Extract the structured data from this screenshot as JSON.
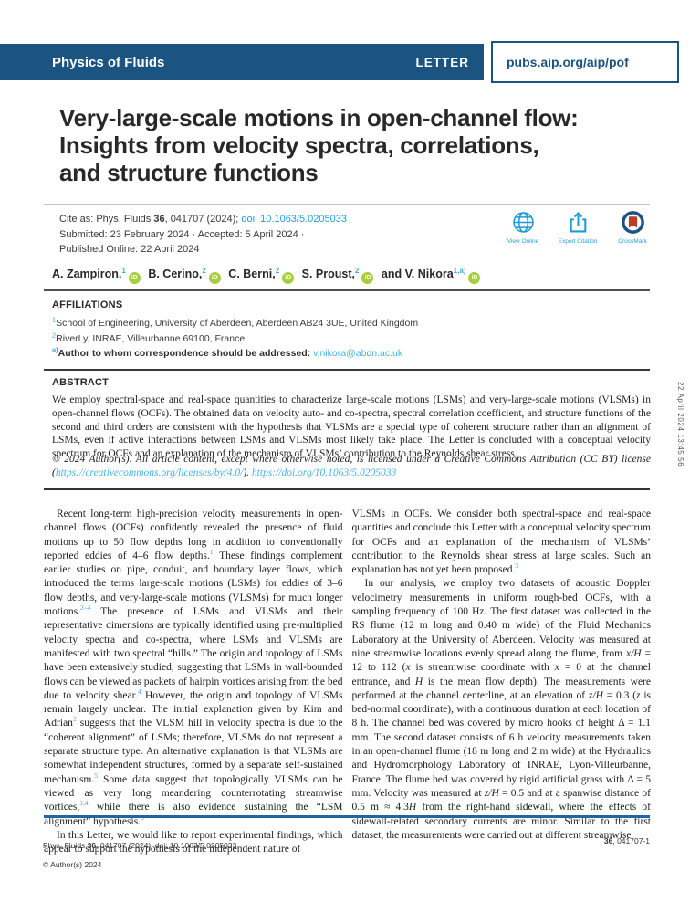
{
  "colors": {
    "navy": "#1b5480",
    "link_blue": "#1ba0dc",
    "light_blue": "#4ab3e8",
    "ref_blue": "#3fa9e0",
    "orcid_green": "#a6ce39",
    "crossmark_red": "#c0392b",
    "bottom_rule_blue": "#2165a2"
  },
  "masthead": {
    "journal": "Physics of Fluids",
    "article_type": "LETTER",
    "site_url": "pubs.aip.org/aip/pof"
  },
  "title": {
    "lines": [
      "Very-large-scale motions in open-channel flow:",
      "Insights from velocity spectra, correlations,",
      "and structure functions"
    ]
  },
  "citation": {
    "line1": [
      {
        "t": "Cite as: Phys. Fluids ",
        "n": "cite-text"
      },
      {
        "t": "36",
        "c": "b",
        "n": "volume-number"
      },
      {
        "t": ", 041707 (2024); ",
        "n": "cite-text"
      },
      {
        "t": "doi: 10.1063/5.0205033",
        "c": "doi",
        "n": "doi-link",
        "i": true
      }
    ],
    "line2": [
      {
        "t": "Submitted: 23 February 2024 · Accepted: 5 April 2024 ·",
        "n": "dates-text"
      }
    ],
    "line3": [
      {
        "t": "Published Online: 22 April 2024",
        "n": "published-text"
      }
    ],
    "actions": [
      {
        "label": "View Online",
        "icon": "globe-icon"
      },
      {
        "label": "Export Citation",
        "icon": "export-citation-icon"
      },
      {
        "label": "CrossMark",
        "icon": "crossmark-icon"
      }
    ]
  },
  "authors": {
    "segments": [
      {
        "t": "A. Zampiron,",
        "n": "author-name"
      },
      {
        "t": "1",
        "c": "asup",
        "n": "author-affil-ref",
        "i": true
      },
      {
        "t": "iD",
        "c": "orcid",
        "n": "orcid-icon",
        "i": true
      },
      {
        "t": " B. Cerino,",
        "n": "author-name"
      },
      {
        "t": "2",
        "c": "asup",
        "n": "author-affil-ref",
        "i": true
      },
      {
        "t": "iD",
        "c": "orcid",
        "n": "orcid-icon",
        "i": true
      },
      {
        "t": " C. Berni,",
        "n": "author-name"
      },
      {
        "t": "2",
        "c": "asup",
        "n": "author-affil-ref",
        "i": true
      },
      {
        "t": "iD",
        "c": "orcid",
        "n": "orcid-icon",
        "i": true
      },
      {
        "t": " S. Proust,",
        "n": "author-name"
      },
      {
        "t": "2",
        "c": "asup",
        "n": "author-affil-ref",
        "i": true
      },
      {
        "t": "iD",
        "c": "orcid",
        "n": "orcid-icon",
        "i": true
      },
      {
        "t": " and V. Nikora",
        "n": "author-name"
      },
      {
        "t": "1,a)",
        "c": "asup",
        "n": "author-affil-ref",
        "i": true
      },
      {
        "t": "iD",
        "c": "orcid",
        "n": "orcid-icon",
        "i": true
      }
    ]
  },
  "affiliations": {
    "heading": "AFFILIATIONS",
    "line1": [
      {
        "t": "1",
        "c": "fsup",
        "n": "affil-number"
      },
      {
        "t": "School of Engineering, University of Aberdeen, Aberdeen AB24 3UE, United Kingdom",
        "n": "affil-text"
      }
    ],
    "line2": [
      {
        "t": "2",
        "c": "fsup",
        "n": "affil-number"
      },
      {
        "t": "RiverLy, INRAE, Villeurbanne 69100, France",
        "n": "affil-text"
      }
    ],
    "correspondence": [
      {
        "t": "a)",
        "c": "fsup b",
        "n": "note-marker"
      },
      {
        "t": "Author to whom correspondence should be addressed: ",
        "n": "correspondence-text"
      },
      {
        "t": "v.nikora@abdn.ac.uk",
        "c": "lnk",
        "n": "email-link",
        "i": true
      }
    ]
  },
  "abstract": {
    "heading": "ABSTRACT",
    "text": "We employ spectral-space and real-space quantities to characterize large-scale motions (LSMs) and very-large-scale motions (VLSMs) in open-channel flows (OCFs). The obtained data on velocity auto- and co-spectra, spectral correlation coefficient, and structure functions of the second and third orders are consistent with the hypothesis that VLSMs are a special type of coherent structure rather than an alignment of LSMs, even if active interactions between LSMs and VLSMs most likely take place. The Letter is concluded with a conceptual velocity spectrum for OCFs and an explanation of the mechanism of VLSMs’ contribution to the Reynolds shear stress.",
    "license": [
      {
        "t": "© 2024  Author(s). All article content, except where otherwise noted, is licensed under a Creative Commons Attribution (CC BY) license (",
        "n": "license-text"
      },
      {
        "t": "https://creativecommons.org/licenses/by/4.0/",
        "c": "lnk",
        "n": "license-link",
        "i": true
      },
      {
        "t": "). ",
        "n": "license-text"
      },
      {
        "t": "https://doi.org/10.1063/5.0205033",
        "c": "lnk",
        "n": "doi-url-link",
        "i": true
      }
    ]
  },
  "body": {
    "left_p1": [
      {
        "t": "Recent long-term high-precision velocity measurements in open-channel flows (OCFs) confidently revealed the presence of fluid motions up to 50 flow depths long in addition to conventionally reported eddies of 4–6 flow depths.",
        "n": "body-text"
      },
      {
        "t": "1",
        "c": "r",
        "n": "reference-link",
        "i": true
      },
      {
        "t": " These findings complement earlier studies on pipe, conduit, and boundary layer flows, which introduced the terms large-scale motions (LSMs) for eddies of 3–6 flow depths, and very-large-scale motions (VLSMs) for much longer motions.",
        "n": "body-text"
      },
      {
        "t": "2–4",
        "c": "r",
        "n": "reference-link",
        "i": true
      },
      {
        "t": " The presence of LSMs and VLSMs and their representative dimensions are typically identified using pre-multiplied velocity spectra and co-spectra, where LSMs and VLSMs are manifested with two spectral “hills.” The origin and topology of LSMs have been extensively studied, suggesting that LSMs in wall-bounded flows can be viewed as packets of hairpin vortices arising from the bed due to velocity shear.",
        "n": "body-text"
      },
      {
        "t": "4",
        "c": "r",
        "n": "reference-link",
        "i": true
      },
      {
        "t": " However, the origin and topology of VLSMs remain largely unclear. The initial explanation given by Kim and Adrian",
        "n": "body-text"
      },
      {
        "t": "2",
        "c": "r",
        "n": "reference-link",
        "i": true
      },
      {
        "t": " suggests that the VLSM hill in velocity spectra is due to the “coherent alignment” of LSMs; therefore, VLSMs do not represent a separate structure type. An alternative explanation is that VLSMs are somewhat independent structures, formed by a separate self-sustained mechanism.",
        "n": "body-text"
      },
      {
        "t": "5",
        "c": "r",
        "n": "reference-link",
        "i": true
      },
      {
        "t": " Some data suggest that topologically VLSMs can be viewed as very long meandering counterrotating streamwise vortices,",
        "n": "body-text"
      },
      {
        "t": "1,4",
        "c": "r",
        "n": "reference-link",
        "i": true
      },
      {
        "t": " while there is also evidence sustaining the “LSM alignment” hypothesis.",
        "n": "body-text"
      },
      {
        "t": "6",
        "c": "r",
        "n": "reference-link",
        "i": true
      }
    ],
    "left_p2": [
      {
        "t": "In this Letter, we would like to report experimental findings, which appear to support the hypothesis of the independent nature of",
        "n": "body-text"
      }
    ],
    "right_p1": [
      {
        "t": "VLSMs in OCFs. We consider both spectral-space and real-space quantities and conclude this Letter with a conceptual velocity spectrum for OCFs and an explanation of the mechanism of VLSMs’ contribution to the Reynolds shear stress at large scales. Such an explanation has not yet been proposed.",
        "n": "body-text"
      },
      {
        "t": "3",
        "c": "r",
        "n": "reference-link",
        "i": true
      }
    ],
    "right_p2": [
      {
        "t": "In our analysis, we employ two datasets of acoustic Doppler velocimetry measurements in uniform rough-bed OCFs, with a sampling frequency of 100 Hz. The first dataset was collected in the RS flume (12 m long and 0.40 m wide) of the Fluid Mechanics Laboratory at the University of Aberdeen. Velocity was measured at nine streamwise locations evenly spread along the flume, from ",
        "n": "body-text"
      },
      {
        "t": "x/H",
        "c": "m",
        "n": "math-var"
      },
      {
        "t": " = 12 to 112 (",
        "n": "body-text"
      },
      {
        "t": "x",
        "c": "m",
        "n": "math-var"
      },
      {
        "t": " is streamwise coordinate with ",
        "n": "body-text"
      },
      {
        "t": "x",
        "c": "m",
        "n": "math-var"
      },
      {
        "t": " = 0 at the channel entrance, and ",
        "n": "body-text"
      },
      {
        "t": "H",
        "c": "m",
        "n": "math-var"
      },
      {
        "t": " is the mean flow depth). The measurements were performed at the channel centerline, at an elevation of ",
        "n": "body-text"
      },
      {
        "t": "z/H",
        "c": "m",
        "n": "math-var"
      },
      {
        "t": " = 0.3 (",
        "n": "body-text"
      },
      {
        "t": "z",
        "c": "m",
        "n": "math-var"
      },
      {
        "t": " is bed-normal coordinate), with a continuous duration at each location of 8 h. The channel bed was covered by micro hooks of height Δ = 1.1 mm. The second dataset consists of 6 h velocity measurements taken in an open-channel flume (18 m long and 2 m wide) at the Hydraulics and Hydromorphology Laboratory of INRAE, Lyon-Villeurbanne, France. The flume bed was covered by rigid artificial grass with Δ = 5 mm. Velocity was measured at ",
        "n": "body-text"
      },
      {
        "t": "z/H",
        "c": "m",
        "n": "math-var"
      },
      {
        "t": " = 0.5 and at a spanwise distance of 0.5 m ≈ 4.3",
        "n": "body-text"
      },
      {
        "t": "H",
        "c": "m",
        "n": "math-var"
      },
      {
        "t": " from the right-hand sidewall, where the effects of sidewall-related secondary currents are minor. Similar to the first dataset, the measurements were carried out at different streamwise",
        "n": "body-text"
      }
    ]
  },
  "footer": {
    "left_line1": [
      {
        "t": "Phys. Fluids ",
        "n": "footer-citation"
      },
      {
        "t": "36",
        "c": "b",
        "n": "footer-volume"
      },
      {
        "t": ", 041707 (2024); doi: 10.1063/5.0205033",
        "n": "footer-citation"
      }
    ],
    "left_line2": [
      {
        "t": "© Author(s) 2024",
        "n": "footer-copyright"
      }
    ],
    "right": [
      {
        "t": "36",
        "c": "b",
        "n": "footer-volume"
      },
      {
        "t": ", 041707-1",
        "n": "footer-page-number"
      }
    ]
  },
  "stamp": "22 April 2024 13:45:56"
}
